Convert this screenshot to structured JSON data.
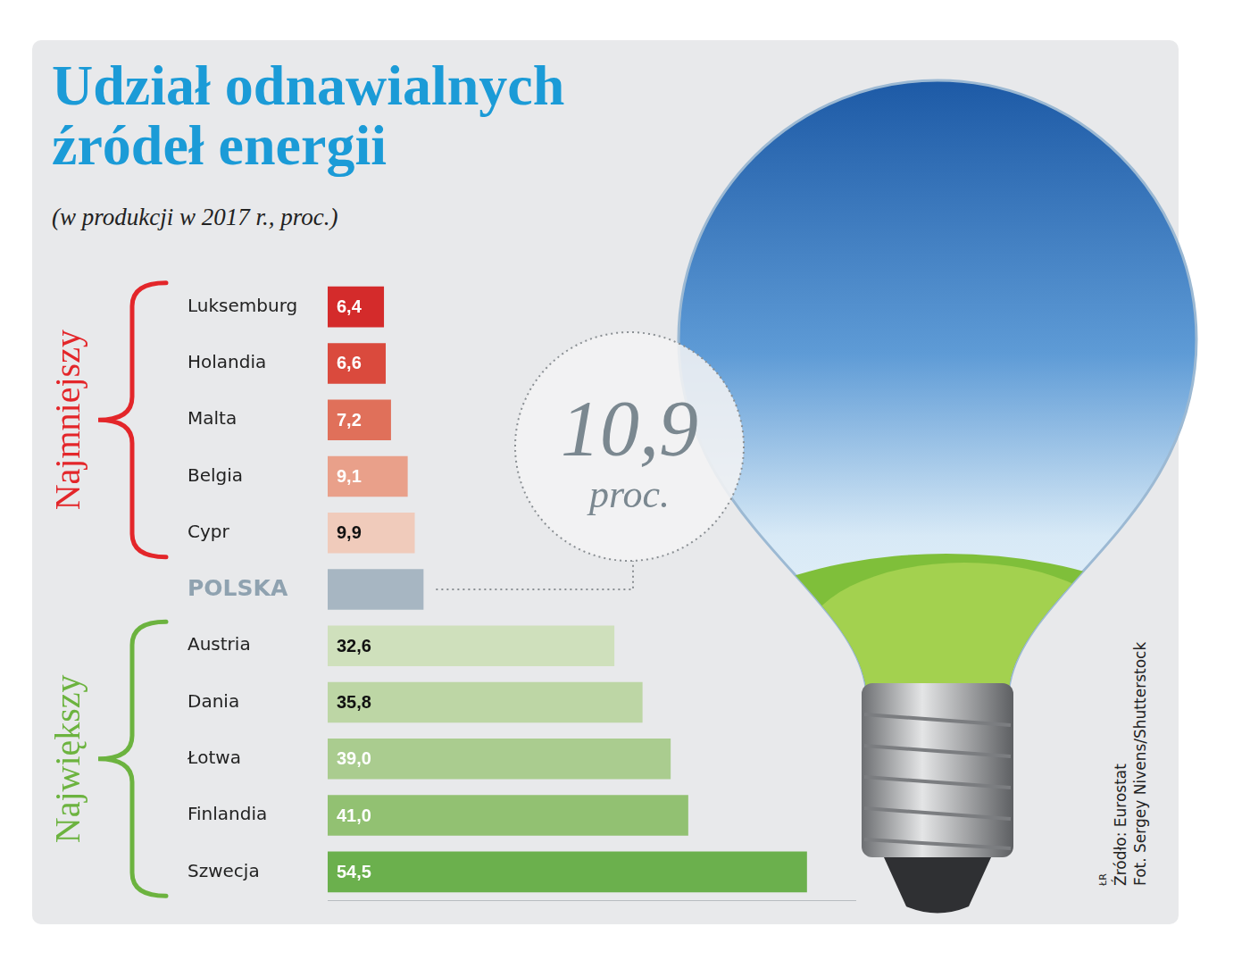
{
  "chart_data": {
    "type": "bar",
    "orientation": "horizontal",
    "title": "Udział odnawialnych źródeł energii",
    "subtitle": "(w produkcji w 2017 r., proc.)",
    "categories": [
      "Luksemburg",
      "Holandia",
      "Malta",
      "Belgia",
      "Cypr",
      "POLSKA",
      "Austria",
      "Dania",
      "Łotwa",
      "Finlandia",
      "Szwecja"
    ],
    "values": [
      6.4,
      6.6,
      7.2,
      9.1,
      9.9,
      10.9,
      32.6,
      35.8,
      39.0,
      41.0,
      54.5
    ],
    "value_labels": [
      "6,4",
      "6,6",
      "7,2",
      "9,1",
      "9,9",
      "10,9",
      "32,6",
      "35,8",
      "39,0",
      "41,0",
      "54,5"
    ],
    "colors": [
      "#d42b2b",
      "#da4a3d",
      "#e0705a",
      "#e9a08a",
      "#f0cbbb",
      "#a7b6c2",
      "#cfe0bc",
      "#bdd6a5",
      "#aacc8f",
      "#92c172",
      "#6bb04d"
    ],
    "data_labels": true,
    "xlim": [
      0,
      60
    ],
    "grid": false,
    "tick_labels": "y",
    "groups": [
      {
        "label": "Najmniejszy",
        "color": "#e3262a",
        "categories": [
          "Luksemburg",
          "Holandia",
          "Malta",
          "Belgia",
          "Cypr"
        ]
      },
      {
        "label": "Największy",
        "color": "#6cb33f",
        "categories": [
          "Austria",
          "Dania",
          "Łotwa",
          "Finlandia",
          "Szwecja"
        ]
      }
    ],
    "annotations": [
      {
        "category": "POLSKA",
        "text": "proc."
      }
    ],
    "source": "Źródło: Eurostat",
    "credit": "Fot. Sergey Nivens/Shutterstock",
    "author": "ŁR"
  }
}
